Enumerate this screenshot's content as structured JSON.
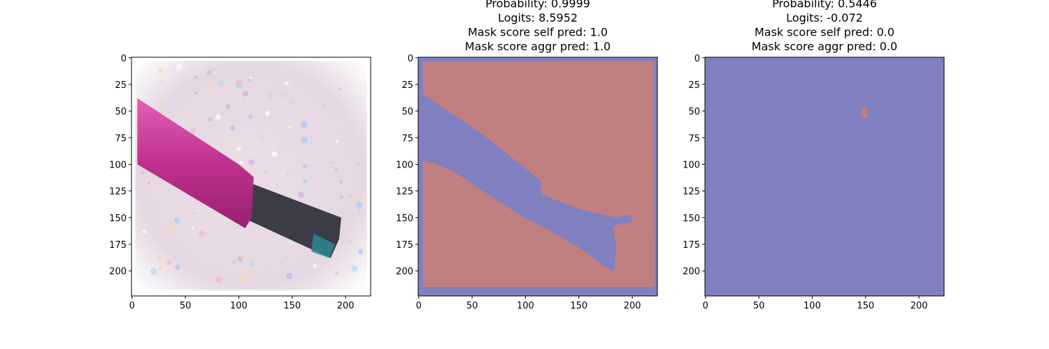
{
  "chart_data": [
    {
      "type": "image",
      "xlim": [
        -0.5,
        223.5
      ],
      "ylim": [
        223.5,
        -0.5
      ],
      "xticks": [
        0,
        50,
        100,
        150,
        200
      ],
      "yticks": [
        0,
        25,
        50,
        75,
        100,
        125,
        150,
        175,
        200
      ]
    },
    {
      "type": "image",
      "title": [
        "Probability: 0.9999",
        "Logits: 8.5952",
        "Mask score self pred: 1.0",
        "Mask score aggr pred: 1.0"
      ],
      "xlim": [
        -0.5,
        223.5
      ],
      "ylim": [
        223.5,
        -0.5
      ],
      "xticks": [
        0,
        50,
        100,
        150,
        200
      ],
      "yticks": [
        0,
        25,
        50,
        75,
        100,
        125,
        150,
        175,
        200
      ]
    },
    {
      "type": "image",
      "title": [
        "Probability: 0.5446",
        "Logits: -0.072",
        "Mask score self pred: 0.0",
        "Mask score aggr pred: 0.0"
      ],
      "xlim": [
        -0.5,
        223.5
      ],
      "ylim": [
        223.5,
        -0.5
      ],
      "xticks": [
        0,
        50,
        100,
        150,
        200
      ],
      "yticks": [
        0,
        25,
        50,
        75,
        100,
        125,
        150,
        175,
        200
      ]
    }
  ]
}
